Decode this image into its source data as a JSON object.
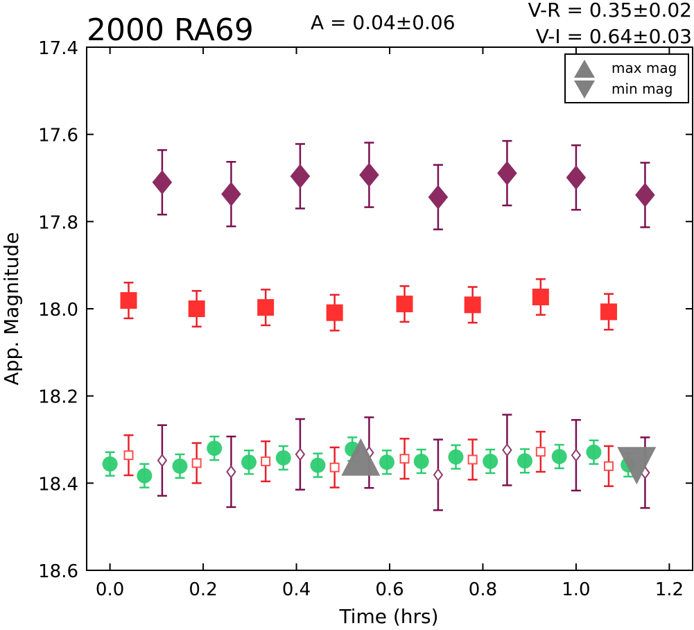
{
  "chart_data": {
    "type": "scatter",
    "title": "2000 RA69",
    "amplitude_label": "A  = 0.04±0.06",
    "color_labels": [
      "V-R = 0.35±0.02",
      "V-I  = 0.64±0.03"
    ],
    "xlabel": "Time (hrs)",
    "ylabel": "App. Magnitude",
    "xlim": [
      -0.05,
      1.25
    ],
    "ylim": [
      18.6,
      17.4
    ],
    "y_inverted": true,
    "xticks": [
      "0.0",
      "0.2",
      "0.4",
      "0.6",
      "0.8",
      "1.0",
      "1.2"
    ],
    "yticks": [
      "17.4",
      "17.6",
      "17.8",
      "18.0",
      "18.2",
      "18.4",
      "18.6"
    ],
    "legend": {
      "placement": "top-right",
      "entries": [
        {
          "label": "max mag",
          "marker": "triangle-up",
          "color": "#808080"
        },
        {
          "label": "min mag",
          "marker": "triangle-down",
          "color": "#808080"
        }
      ]
    },
    "series": [
      {
        "marker": "circle",
        "filled": true,
        "color": "#2ecc71",
        "errcolor": "#2ecc71",
        "x": [
          0.0,
          0.074,
          0.15,
          0.224,
          0.298,
          0.372,
          0.446,
          0.52,
          0.594,
          0.668,
          0.742,
          0.816,
          0.89,
          0.964,
          1.038,
          1.112
        ],
        "y": [
          18.356,
          18.383,
          18.361,
          18.32,
          18.352,
          18.342,
          18.359,
          18.322,
          18.352,
          18.35,
          18.34,
          18.35,
          18.349,
          18.339,
          18.329,
          18.358
        ],
        "err": [
          0.027,
          0.027,
          0.027,
          0.027,
          0.027,
          0.027,
          0.027,
          0.027,
          0.027,
          0.027,
          0.027,
          0.027,
          0.027,
          0.027,
          0.027,
          0.027
        ]
      },
      {
        "marker": "square",
        "filled": false,
        "color": "#ff4d4d",
        "errcolor": "#e8202a",
        "x": [
          0.04,
          0.186,
          0.334,
          0.482,
          0.632,
          0.778,
          0.924,
          1.07
        ],
        "y": [
          18.336,
          18.354,
          18.35,
          18.364,
          18.344,
          18.346,
          18.328,
          18.361
        ],
        "err": [
          0.046,
          0.046,
          0.046,
          0.046,
          0.046,
          0.046,
          0.046,
          0.046
        ]
      },
      {
        "marker": "diamond",
        "filled": false,
        "color": "#8b3a6b",
        "errcolor": "#7a1050",
        "x": [
          0.112,
          0.26,
          0.408,
          0.556,
          0.704,
          0.852,
          1.0,
          1.148
        ],
        "y": [
          18.348,
          18.374,
          18.334,
          18.33,
          18.381,
          18.324,
          18.336,
          18.376
        ],
        "err": [
          0.081,
          0.081,
          0.081,
          0.081,
          0.081,
          0.081,
          0.081,
          0.081
        ]
      },
      {
        "marker": "square",
        "filled": true,
        "color": "#ff3030",
        "errcolor": "#e8202a",
        "x": [
          0.04,
          0.186,
          0.334,
          0.482,
          0.632,
          0.778,
          0.924,
          1.07
        ],
        "y": [
          17.981,
          18.0,
          17.997,
          18.009,
          17.989,
          17.991,
          17.973,
          18.007
        ],
        "err": [
          0.041,
          0.041,
          0.041,
          0.041,
          0.041,
          0.041,
          0.041,
          0.041
        ]
      },
      {
        "marker": "diamond",
        "filled": true,
        "color": "#8b2b62",
        "errcolor": "#7a1050",
        "x": [
          0.112,
          0.26,
          0.408,
          0.556,
          0.704,
          0.852,
          1.0,
          1.148
        ],
        "y": [
          17.71,
          17.737,
          17.696,
          17.693,
          17.744,
          17.689,
          17.699,
          17.739
        ],
        "err": [
          0.074,
          0.074,
          0.074,
          0.074,
          0.074,
          0.074,
          0.074,
          0.074
        ]
      }
    ],
    "markers": [
      {
        "label": "max mag",
        "type": "triangle-up",
        "x": 0.538,
        "y": 18.34,
        "color": "#808080"
      },
      {
        "label": "min mag",
        "type": "triangle-down",
        "x": 1.13,
        "y": 18.36,
        "color": "#808080"
      }
    ]
  }
}
